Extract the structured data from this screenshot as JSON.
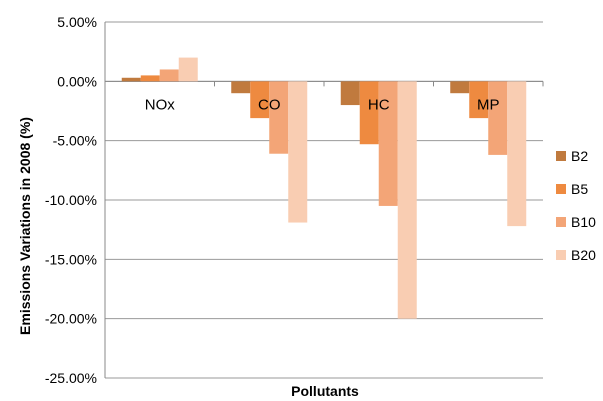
{
  "chart_data": {
    "type": "bar",
    "title": "",
    "xlabel": "Pollutants",
    "ylabel": "Emissions Variations in 2008 (%)",
    "categories": [
      "NOx",
      "CO",
      "HC",
      "MP"
    ],
    "series": [
      {
        "name": "B2",
        "color": "#C07A3E",
        "values": [
          0.3,
          -1.0,
          -2.0,
          -1.0
        ]
      },
      {
        "name": "B5",
        "color": "#EE8A40",
        "values": [
          0.5,
          -3.1,
          -5.3,
          -3.1
        ]
      },
      {
        "name": "B10",
        "color": "#F3A577",
        "values": [
          1.0,
          -6.1,
          -10.5,
          -6.2
        ]
      },
      {
        "name": "B20",
        "color": "#F9CDB2",
        "values": [
          2.0,
          -11.9,
          -20.0,
          -12.2
        ]
      }
    ],
    "ylim": [
      -25,
      5
    ],
    "yticks": [
      5,
      0,
      -5,
      -10,
      -15,
      -20,
      -25
    ],
    "ytick_labels": [
      "5.00%",
      "0.00%",
      "-5.00%",
      "-10.00%",
      "-15.00%",
      "-20.00%",
      "-25.00%"
    ],
    "grid": true,
    "legend_position": "right"
  }
}
